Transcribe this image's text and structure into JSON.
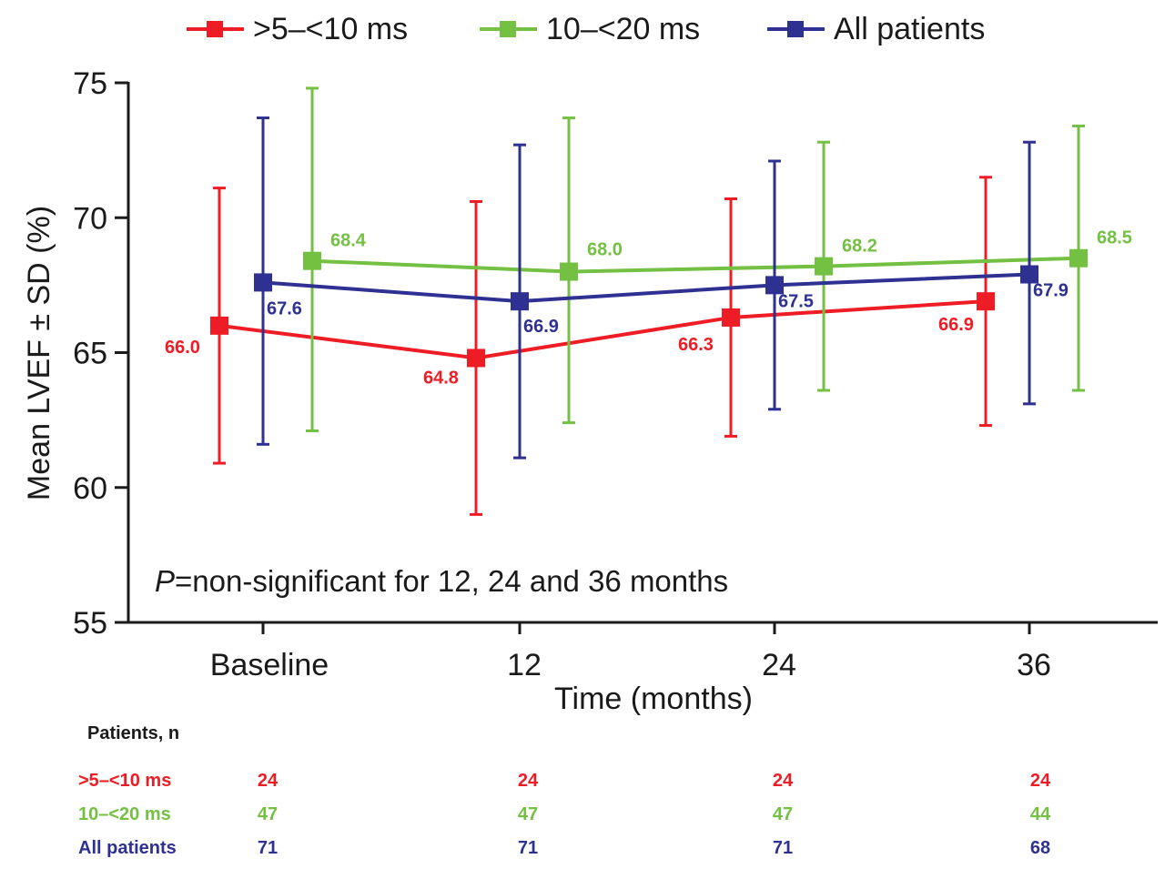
{
  "chart_data": {
    "type": "line",
    "ylabel": "Mean LVEF ± SD (%)",
    "xlabel": "Time (months)",
    "categories": [
      "Baseline",
      "12",
      "24",
      "36"
    ],
    "ylim": [
      55,
      75
    ],
    "yticks": [
      55,
      60,
      65,
      70,
      75
    ],
    "series": [
      {
        "name": ">5–<10 ms",
        "color": "#ee1c24",
        "values": [
          66.0,
          64.8,
          66.3,
          66.9
        ],
        "labels": [
          "66.0",
          "64.8",
          "66.3",
          "66.9"
        ],
        "err_low": [
          60.9,
          59.0,
          61.9,
          62.3
        ],
        "err_high": [
          71.1,
          70.6,
          70.7,
          71.5
        ]
      },
      {
        "name": "10–<20 ms",
        "color": "#74c043",
        "values": [
          68.4,
          68.0,
          68.2,
          68.5
        ],
        "labels": [
          "68.4",
          "68.0",
          "68.2",
          "68.5"
        ],
        "err_low": [
          62.1,
          62.4,
          63.6,
          63.6
        ],
        "err_high": [
          74.8,
          73.7,
          72.8,
          73.4
        ]
      },
      {
        "name": "All patients",
        "color": "#2e3192",
        "values": [
          67.6,
          66.9,
          67.5,
          67.9
        ],
        "labels": [
          "67.6",
          "66.9",
          "67.5",
          "67.9"
        ],
        "err_low": [
          61.6,
          61.1,
          62.9,
          63.1
        ],
        "err_high": [
          73.7,
          72.7,
          72.1,
          72.8
        ]
      }
    ],
    "annotation_prefix": "P",
    "annotation_text": "=non-significant for 12, 24 and 36 months",
    "patients_table": {
      "title": "Patients, n",
      "rows": [
        {
          "label": ">5–<10 ms",
          "values": [
            "24",
            "24",
            "24",
            "24"
          ]
        },
        {
          "label": "10–<20 ms",
          "values": [
            "47",
            "47",
            "47",
            "44"
          ]
        },
        {
          "label": "All patients",
          "values": [
            "71",
            "71",
            "71",
            "68"
          ]
        }
      ]
    }
  }
}
